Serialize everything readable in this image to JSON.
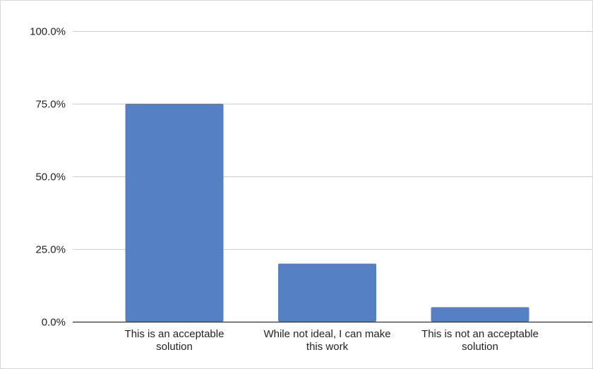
{
  "chart_data": {
    "type": "bar",
    "categories": [
      "This is an acceptable solution",
      "While not ideal, I can make this work",
      "This is not an acceptable solution"
    ],
    "category_label_lines": [
      [
        "This is an acceptable",
        "solution"
      ],
      [
        "While not ideal, I can make",
        "this work"
      ],
      [
        "This is not an acceptable",
        "solution"
      ]
    ],
    "values": [
      75.0,
      20.0,
      5.0
    ],
    "ylim": [
      0,
      100
    ],
    "yticks": [
      0,
      25,
      50,
      75,
      100
    ],
    "ytick_labels": [
      "0.0%",
      "25.0%",
      "50.0%",
      "75.0%",
      "100.0%"
    ],
    "title": "",
    "xlabel": "",
    "ylabel": "",
    "grid": true,
    "legend": "none",
    "colors": {
      "bar": "#5581c4",
      "grid": "#cccccc",
      "axis": "#333333",
      "text": "#222222"
    }
  }
}
